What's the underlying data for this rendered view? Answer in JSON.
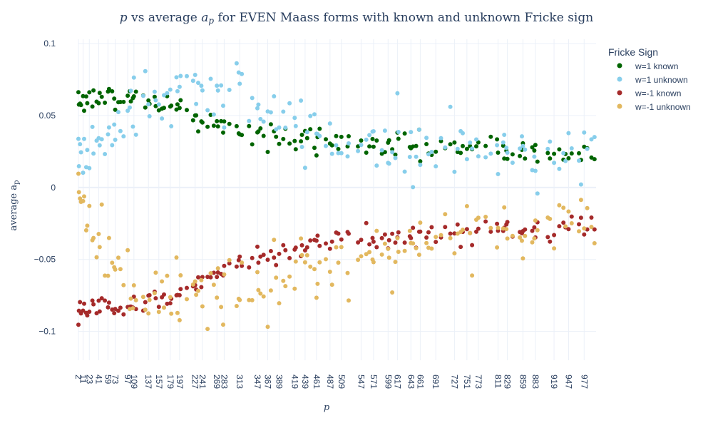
{
  "chart_data": {
    "type": "scatter",
    "title": "p vs average a_p for EVEN Maass forms with known and unknown Fricke sign",
    "title_parts": {
      "var1": "p",
      "mid": " vs average ",
      "var2": "a",
      "sub": "p",
      "rest": " for EVEN Maass forms with known and unknown Fricke sign"
    },
    "xlabel": "p",
    "ylabel": "average a_p",
    "ylabel_parts": {
      "main": "average a",
      "sub": "p"
    },
    "xlim": [
      2,
      1000
    ],
    "ylim": [
      -0.12,
      0.103
    ],
    "x_ticks": [
      "2",
      "11",
      "23",
      "41",
      "59",
      "73",
      "97",
      "109",
      "137",
      "157",
      "179",
      "197",
      "227",
      "241",
      "269",
      "283",
      "313",
      "347",
      "367",
      "389",
      "419",
      "439",
      "461",
      "487",
      "509",
      "547",
      "571",
      "599",
      "617",
      "643",
      "661",
      "691",
      "727",
      "751",
      "773",
      "811",
      "829",
      "859",
      "883",
      "919",
      "947",
      "977"
    ],
    "y_ticks": [
      -0.1,
      -0.05,
      0,
      0.05,
      0.1
    ],
    "y_tick_labels": [
      "−0.1",
      "−0.05",
      "0",
      "0.05",
      "0.1"
    ],
    "legend": {
      "title": "Fricke Sign",
      "position": "top-right"
    },
    "series": [
      {
        "name": "w=1 known",
        "color": "#006400",
        "anchors": [
          [
            2,
            0.062
          ],
          [
            100,
            0.062
          ],
          [
            120,
            0.062
          ],
          [
            200,
            0.054
          ],
          [
            260,
            0.044
          ],
          [
            400,
            0.033
          ],
          [
            600,
            0.03
          ],
          [
            800,
            0.026
          ],
          [
            1000,
            0.022
          ]
        ],
        "spread": 0.0045
      },
      {
        "name": "w=1 unknown",
        "color": "#87ceeb",
        "anchors": [
          [
            2,
            0.022
          ],
          [
            40,
            0.03
          ],
          [
            100,
            0.055
          ],
          [
            200,
            0.068
          ],
          [
            300,
            0.065
          ],
          [
            400,
            0.045
          ],
          [
            500,
            0.033
          ],
          [
            700,
            0.028
          ],
          [
            1000,
            0.022
          ]
        ],
        "spread": 0.011
      },
      {
        "name": "w=-1 known",
        "color": "#a52a2a",
        "anchors": [
          [
            2,
            -0.084
          ],
          [
            130,
            -0.081
          ],
          [
            200,
            -0.074
          ],
          [
            300,
            -0.052
          ],
          [
            400,
            -0.044
          ],
          [
            500,
            -0.037
          ],
          [
            700,
            -0.032
          ],
          [
            1000,
            -0.027
          ]
        ],
        "spread": 0.004
      },
      {
        "name": "w=-1 unknown",
        "color": "#e2b85f",
        "anchors": [
          [
            2,
            0.0
          ],
          [
            20,
            -0.02
          ],
          [
            60,
            -0.045
          ],
          [
            120,
            -0.075
          ],
          [
            200,
            -0.075
          ],
          [
            300,
            -0.074
          ],
          [
            400,
            -0.065
          ],
          [
            500,
            -0.05
          ],
          [
            700,
            -0.035
          ],
          [
            1000,
            -0.02
          ]
        ],
        "spread": 0.012
      }
    ]
  }
}
